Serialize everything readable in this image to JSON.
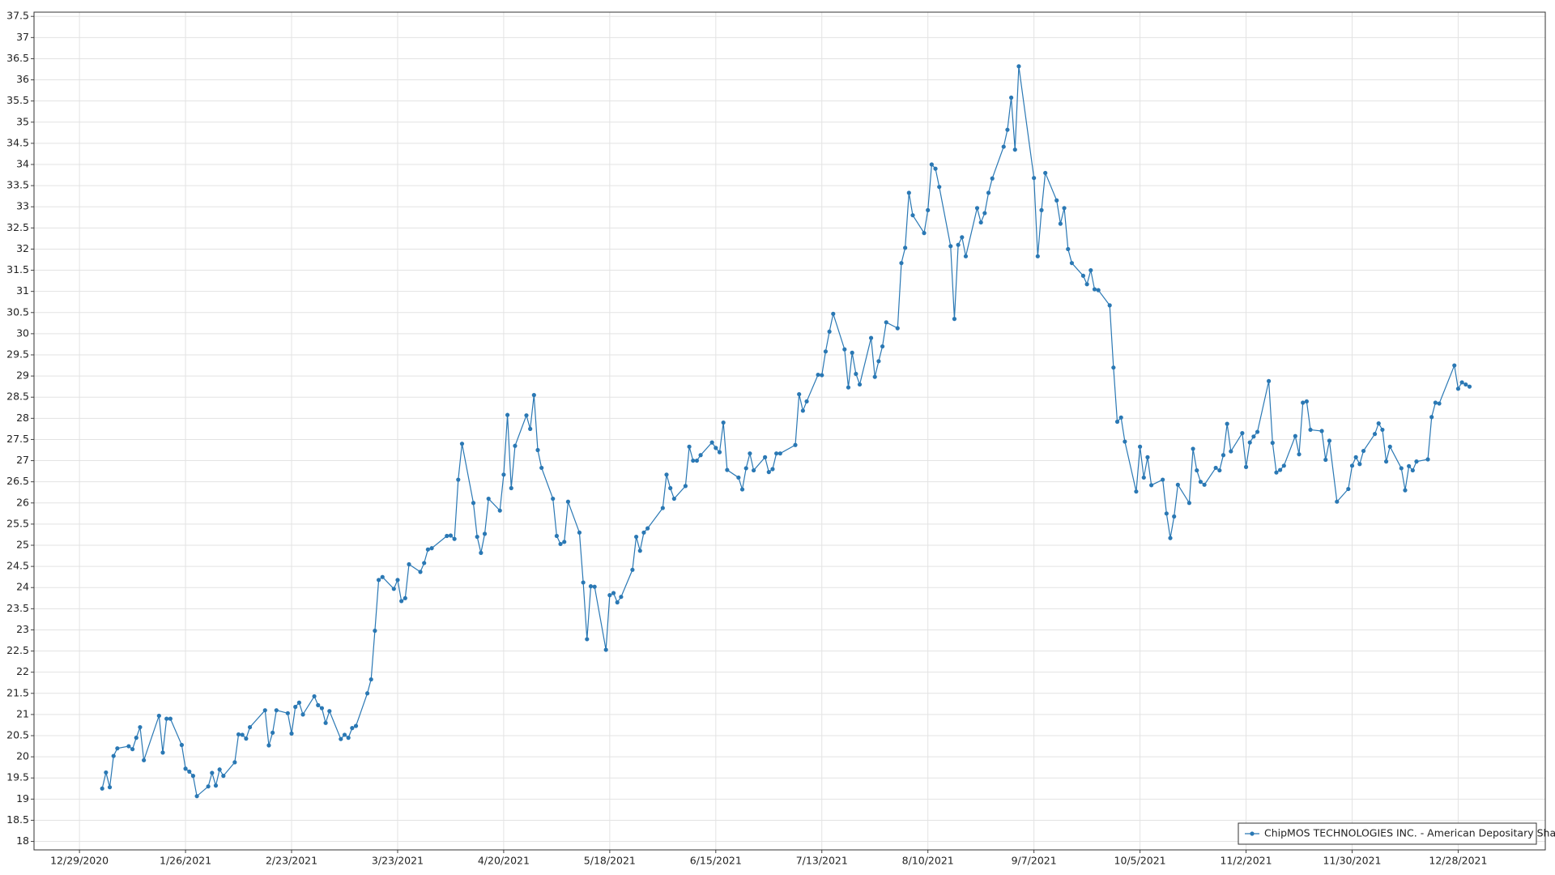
{
  "chart_data": {
    "type": "line",
    "x": [
      "2021-01-04",
      "2021-01-05",
      "2021-01-06",
      "2021-01-07",
      "2021-01-08",
      "2021-01-11",
      "2021-01-12",
      "2021-01-13",
      "2021-01-14",
      "2021-01-15",
      "2021-01-19",
      "2021-01-20",
      "2021-01-21",
      "2021-01-22",
      "2021-01-25",
      "2021-01-26",
      "2021-01-27",
      "2021-01-28",
      "2021-01-29",
      "2021-02-01",
      "2021-02-02",
      "2021-02-03",
      "2021-02-04",
      "2021-02-05",
      "2021-02-08",
      "2021-02-09",
      "2021-02-10",
      "2021-02-11",
      "2021-02-12",
      "2021-02-16",
      "2021-02-17",
      "2021-02-18",
      "2021-02-19",
      "2021-02-22",
      "2021-02-23",
      "2021-02-24",
      "2021-02-25",
      "2021-02-26",
      "2021-03-01",
      "2021-03-02",
      "2021-03-03",
      "2021-03-04",
      "2021-03-05",
      "2021-03-08",
      "2021-03-09",
      "2021-03-10",
      "2021-03-11",
      "2021-03-12",
      "2021-03-15",
      "2021-03-16",
      "2021-03-17",
      "2021-03-18",
      "2021-03-19",
      "2021-03-22",
      "2021-03-23",
      "2021-03-24",
      "2021-03-25",
      "2021-03-26",
      "2021-03-29",
      "2021-03-30",
      "2021-03-31",
      "2021-04-01",
      "2021-04-05",
      "2021-04-06",
      "2021-04-07",
      "2021-04-08",
      "2021-04-09",
      "2021-04-12",
      "2021-04-13",
      "2021-04-14",
      "2021-04-15",
      "2021-04-16",
      "2021-04-19",
      "2021-04-20",
      "2021-04-21",
      "2021-04-22",
      "2021-04-23",
      "2021-04-26",
      "2021-04-27",
      "2021-04-28",
      "2021-04-29",
      "2021-04-30",
      "2021-05-03",
      "2021-05-04",
      "2021-05-05",
      "2021-05-06",
      "2021-05-07",
      "2021-05-10",
      "2021-05-11",
      "2021-05-12",
      "2021-05-13",
      "2021-05-14",
      "2021-05-17",
      "2021-05-18",
      "2021-05-19",
      "2021-05-20",
      "2021-05-21",
      "2021-05-24",
      "2021-05-25",
      "2021-05-26",
      "2021-05-27",
      "2021-05-28",
      "2021-06-01",
      "2021-06-02",
      "2021-06-03",
      "2021-06-04",
      "2021-06-07",
      "2021-06-08",
      "2021-06-09",
      "2021-06-10",
      "2021-06-11",
      "2021-06-14",
      "2021-06-15",
      "2021-06-16",
      "2021-06-17",
      "2021-06-18",
      "2021-06-21",
      "2021-06-22",
      "2021-06-23",
      "2021-06-24",
      "2021-06-25",
      "2021-06-28",
      "2021-06-29",
      "2021-06-30",
      "2021-07-01",
      "2021-07-02",
      "2021-07-06",
      "2021-07-07",
      "2021-07-08",
      "2021-07-09",
      "2021-07-12",
      "2021-07-13",
      "2021-07-14",
      "2021-07-15",
      "2021-07-16",
      "2021-07-19",
      "2021-07-20",
      "2021-07-21",
      "2021-07-22",
      "2021-07-23",
      "2021-07-26",
      "2021-07-27",
      "2021-07-28",
      "2021-07-29",
      "2021-07-30",
      "2021-08-02",
      "2021-08-03",
      "2021-08-04",
      "2021-08-05",
      "2021-08-06",
      "2021-08-09",
      "2021-08-10",
      "2021-08-11",
      "2021-08-12",
      "2021-08-13",
      "2021-08-16",
      "2021-08-17",
      "2021-08-18",
      "2021-08-19",
      "2021-08-20",
      "2021-08-23",
      "2021-08-24",
      "2021-08-25",
      "2021-08-26",
      "2021-08-27",
      "2021-08-30",
      "2021-08-31",
      "2021-09-01",
      "2021-09-02",
      "2021-09-03",
      "2021-09-07",
      "2021-09-08",
      "2021-09-09",
      "2021-09-10",
      "2021-09-13",
      "2021-09-14",
      "2021-09-15",
      "2021-09-16",
      "2021-09-17",
      "2021-09-20",
      "2021-09-21",
      "2021-09-22",
      "2021-09-23",
      "2021-09-24",
      "2021-09-27",
      "2021-09-28",
      "2021-09-29",
      "2021-09-30",
      "2021-10-01",
      "2021-10-04",
      "2021-10-05",
      "2021-10-06",
      "2021-10-07",
      "2021-10-08",
      "2021-10-11",
      "2021-10-12",
      "2021-10-13",
      "2021-10-14",
      "2021-10-15",
      "2021-10-18",
      "2021-10-19",
      "2021-10-20",
      "2021-10-21",
      "2021-10-22",
      "2021-10-25",
      "2021-10-26",
      "2021-10-27",
      "2021-10-28",
      "2021-10-29",
      "2021-11-01",
      "2021-11-02",
      "2021-11-03",
      "2021-11-04",
      "2021-11-05",
      "2021-11-08",
      "2021-11-09",
      "2021-11-10",
      "2021-11-11",
      "2021-11-12",
      "2021-11-15",
      "2021-11-16",
      "2021-11-17",
      "2021-11-18",
      "2021-11-19",
      "2021-11-22",
      "2021-11-23",
      "2021-11-24",
      "2021-11-26",
      "2021-11-29",
      "2021-11-30",
      "2021-12-01",
      "2021-12-02",
      "2021-12-03",
      "2021-12-06",
      "2021-12-07",
      "2021-12-08",
      "2021-12-09",
      "2021-12-10",
      "2021-12-13",
      "2021-12-14",
      "2021-12-15",
      "2021-12-16",
      "2021-12-17",
      "2021-12-20",
      "2021-12-21",
      "2021-12-22",
      "2021-12-23",
      "2021-12-27",
      "2021-12-28",
      "2021-12-29",
      "2021-12-30",
      "2021-12-31"
    ],
    "series": [
      {
        "name": "ChipMOS TECHNOLOGIES INC. - American Depositary Shares",
        "color": "#2a78b4",
        "values": [
          19.25,
          19.63,
          19.28,
          20.02,
          20.2,
          20.25,
          20.18,
          20.45,
          20.7,
          19.92,
          20.97,
          20.1,
          20.9,
          20.9,
          20.28,
          19.72,
          19.65,
          19.55,
          19.07,
          19.3,
          19.62,
          19.32,
          19.7,
          19.55,
          19.87,
          20.53,
          20.52,
          20.43,
          20.7,
          21.1,
          20.27,
          20.57,
          21.1,
          21.03,
          20.55,
          21.18,
          21.28,
          21.0,
          21.43,
          21.22,
          21.15,
          20.8,
          21.08,
          20.42,
          20.52,
          20.45,
          20.68,
          20.73,
          21.5,
          21.83,
          22.98,
          24.18,
          24.25,
          23.97,
          24.18,
          23.68,
          23.75,
          24.55,
          24.37,
          24.58,
          24.9,
          24.93,
          25.22,
          25.23,
          25.15,
          26.55,
          27.4,
          26.0,
          25.2,
          24.82,
          25.27,
          26.1,
          25.82,
          26.67,
          28.08,
          26.35,
          27.35,
          28.07,
          27.75,
          28.55,
          27.25,
          26.83,
          26.1,
          25.22,
          25.03,
          25.08,
          26.03,
          25.3,
          24.12,
          22.78,
          24.03,
          24.02,
          22.53,
          23.82,
          23.87,
          23.65,
          23.78,
          24.42,
          25.2,
          24.87,
          25.3,
          25.4,
          25.88,
          26.67,
          26.35,
          26.1,
          26.4,
          27.33,
          27.0,
          27.0,
          27.13,
          27.43,
          27.3,
          27.2,
          27.9,
          26.78,
          26.6,
          26.32,
          26.82,
          27.17,
          26.77,
          27.08,
          26.73,
          26.8,
          27.17,
          27.17,
          27.37,
          28.57,
          28.18,
          28.4,
          29.03,
          29.02,
          29.58,
          30.05,
          30.47,
          29.63,
          28.73,
          29.55,
          29.05,
          28.8,
          29.9,
          28.98,
          29.35,
          29.7,
          30.27,
          30.13,
          31.67,
          32.03,
          33.33,
          32.8,
          32.38,
          32.92,
          34.0,
          33.9,
          33.47,
          32.07,
          30.35,
          32.1,
          32.28,
          31.83,
          32.97,
          32.63,
          32.85,
          33.33,
          33.67,
          34.42,
          34.82,
          35.58,
          34.35,
          36.32,
          33.68,
          31.83,
          32.92,
          33.8,
          33.15,
          32.6,
          32.97,
          32.0,
          31.67,
          31.37,
          31.17,
          31.5,
          31.05,
          31.03,
          30.67,
          29.2,
          27.92,
          28.02,
          27.45,
          26.27,
          27.33,
          26.6,
          27.08,
          26.42,
          26.55,
          25.75,
          25.17,
          25.68,
          26.43,
          26.0,
          27.28,
          26.77,
          26.5,
          26.43,
          26.83,
          26.77,
          27.13,
          27.87,
          27.22,
          27.65,
          26.85,
          27.43,
          27.57,
          27.68,
          28.88,
          27.42,
          26.72,
          26.78,
          26.88,
          27.58,
          27.15,
          28.37,
          28.4,
          27.73,
          27.7,
          27.02,
          27.47,
          26.03,
          26.33,
          26.88,
          27.08,
          26.92,
          27.23,
          27.63,
          27.88,
          27.73,
          26.98,
          27.33,
          26.82,
          26.3,
          26.87,
          26.77,
          26.98,
          27.03,
          28.03,
          28.37,
          28.35,
          29.25,
          28.7,
          28.85,
          28.8,
          28.75
        ]
      }
    ],
    "xlim": [
      "2020-12-17",
      "2022-01-20"
    ],
    "xticks": [
      {
        "value": "2020-12-29",
        "label": "12/29/2020"
      },
      {
        "value": "2021-01-26",
        "label": "1/26/2021"
      },
      {
        "value": "2021-02-23",
        "label": "2/23/2021"
      },
      {
        "value": "2021-03-23",
        "label": "3/23/2021"
      },
      {
        "value": "2021-04-20",
        "label": "4/20/2021"
      },
      {
        "value": "2021-05-18",
        "label": "5/18/2021"
      },
      {
        "value": "2021-06-15",
        "label": "6/15/2021"
      },
      {
        "value": "2021-07-13",
        "label": "7/13/2021"
      },
      {
        "value": "2021-08-10",
        "label": "8/10/2021"
      },
      {
        "value": "2021-09-07",
        "label": "9/7/2021"
      },
      {
        "value": "2021-10-05",
        "label": "10/5/2021"
      },
      {
        "value": "2021-11-02",
        "label": "11/2/2021"
      },
      {
        "value": "2021-11-30",
        "label": "11/30/2021"
      },
      {
        "value": "2021-12-28",
        "label": "12/28/2021"
      }
    ],
    "ylim": [
      17.8,
      37.6
    ],
    "yticks": [
      18,
      18.5,
      19,
      19.5,
      20,
      20.5,
      21,
      21.5,
      22,
      22.5,
      23,
      23.5,
      24,
      24.5,
      25,
      25.5,
      26,
      26.5,
      27,
      27.5,
      28,
      28.5,
      29,
      29.5,
      30,
      30.5,
      31,
      31.5,
      32,
      32.5,
      33,
      33.5,
      34,
      34.5,
      35,
      35.5,
      36,
      36.5,
      37,
      37.5
    ],
    "grid": true,
    "legend": "lower right"
  }
}
